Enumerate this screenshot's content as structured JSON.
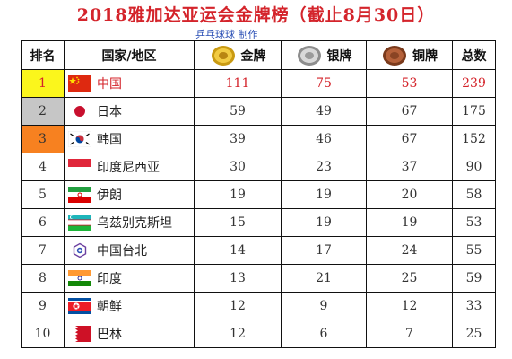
{
  "title": "2018雅加达亚运会金牌榜（截止8月30日）",
  "credit": {
    "name": "乒乓球球",
    "suffix": "制作"
  },
  "headers": {
    "rank": "排名",
    "country": "国家/地区",
    "gold": "金牌",
    "silver": "银牌",
    "bronze": "铜牌",
    "total": "总数"
  },
  "colors": {
    "title": "#d4242b",
    "gold_rank": "#fbf61c",
    "silver_rank": "#c6c6c6",
    "bronze_rank": "#f78120"
  },
  "rows": [
    {
      "rank": "1",
      "country": "中国",
      "flag": "china-flag",
      "gold": "111",
      "silver": "75",
      "bronze": "53",
      "total": "239"
    },
    {
      "rank": "2",
      "country": "日本",
      "flag": "japan-flag",
      "gold": "59",
      "silver": "49",
      "bronze": "67",
      "total": "175"
    },
    {
      "rank": "3",
      "country": "韩国",
      "flag": "korea-flag",
      "gold": "39",
      "silver": "46",
      "bronze": "67",
      "total": "152"
    },
    {
      "rank": "4",
      "country": "印度尼西亚",
      "flag": "indonesia-flag",
      "gold": "30",
      "silver": "23",
      "bronze": "37",
      "total": "90"
    },
    {
      "rank": "5",
      "country": "伊朗",
      "flag": "iran-flag",
      "gold": "19",
      "silver": "19",
      "bronze": "20",
      "total": "58"
    },
    {
      "rank": "6",
      "country": "乌兹别克斯坦",
      "flag": "uzbekistan-flag",
      "gold": "15",
      "silver": "19",
      "bronze": "19",
      "total": "53"
    },
    {
      "rank": "7",
      "country": "中国台北",
      "flag": "chinese-taipei-flag",
      "gold": "14",
      "silver": "17",
      "bronze": "24",
      "total": "55"
    },
    {
      "rank": "8",
      "country": "印度",
      "flag": "india-flag",
      "gold": "13",
      "silver": "21",
      "bronze": "25",
      "total": "59"
    },
    {
      "rank": "9",
      "country": "朝鲜",
      "flag": "north-korea-flag",
      "gold": "12",
      "silver": "9",
      "bronze": "12",
      "total": "33"
    },
    {
      "rank": "10",
      "country": "巴林",
      "flag": "bahrain-flag",
      "gold": "12",
      "silver": "6",
      "bronze": "7",
      "total": "25"
    }
  ]
}
